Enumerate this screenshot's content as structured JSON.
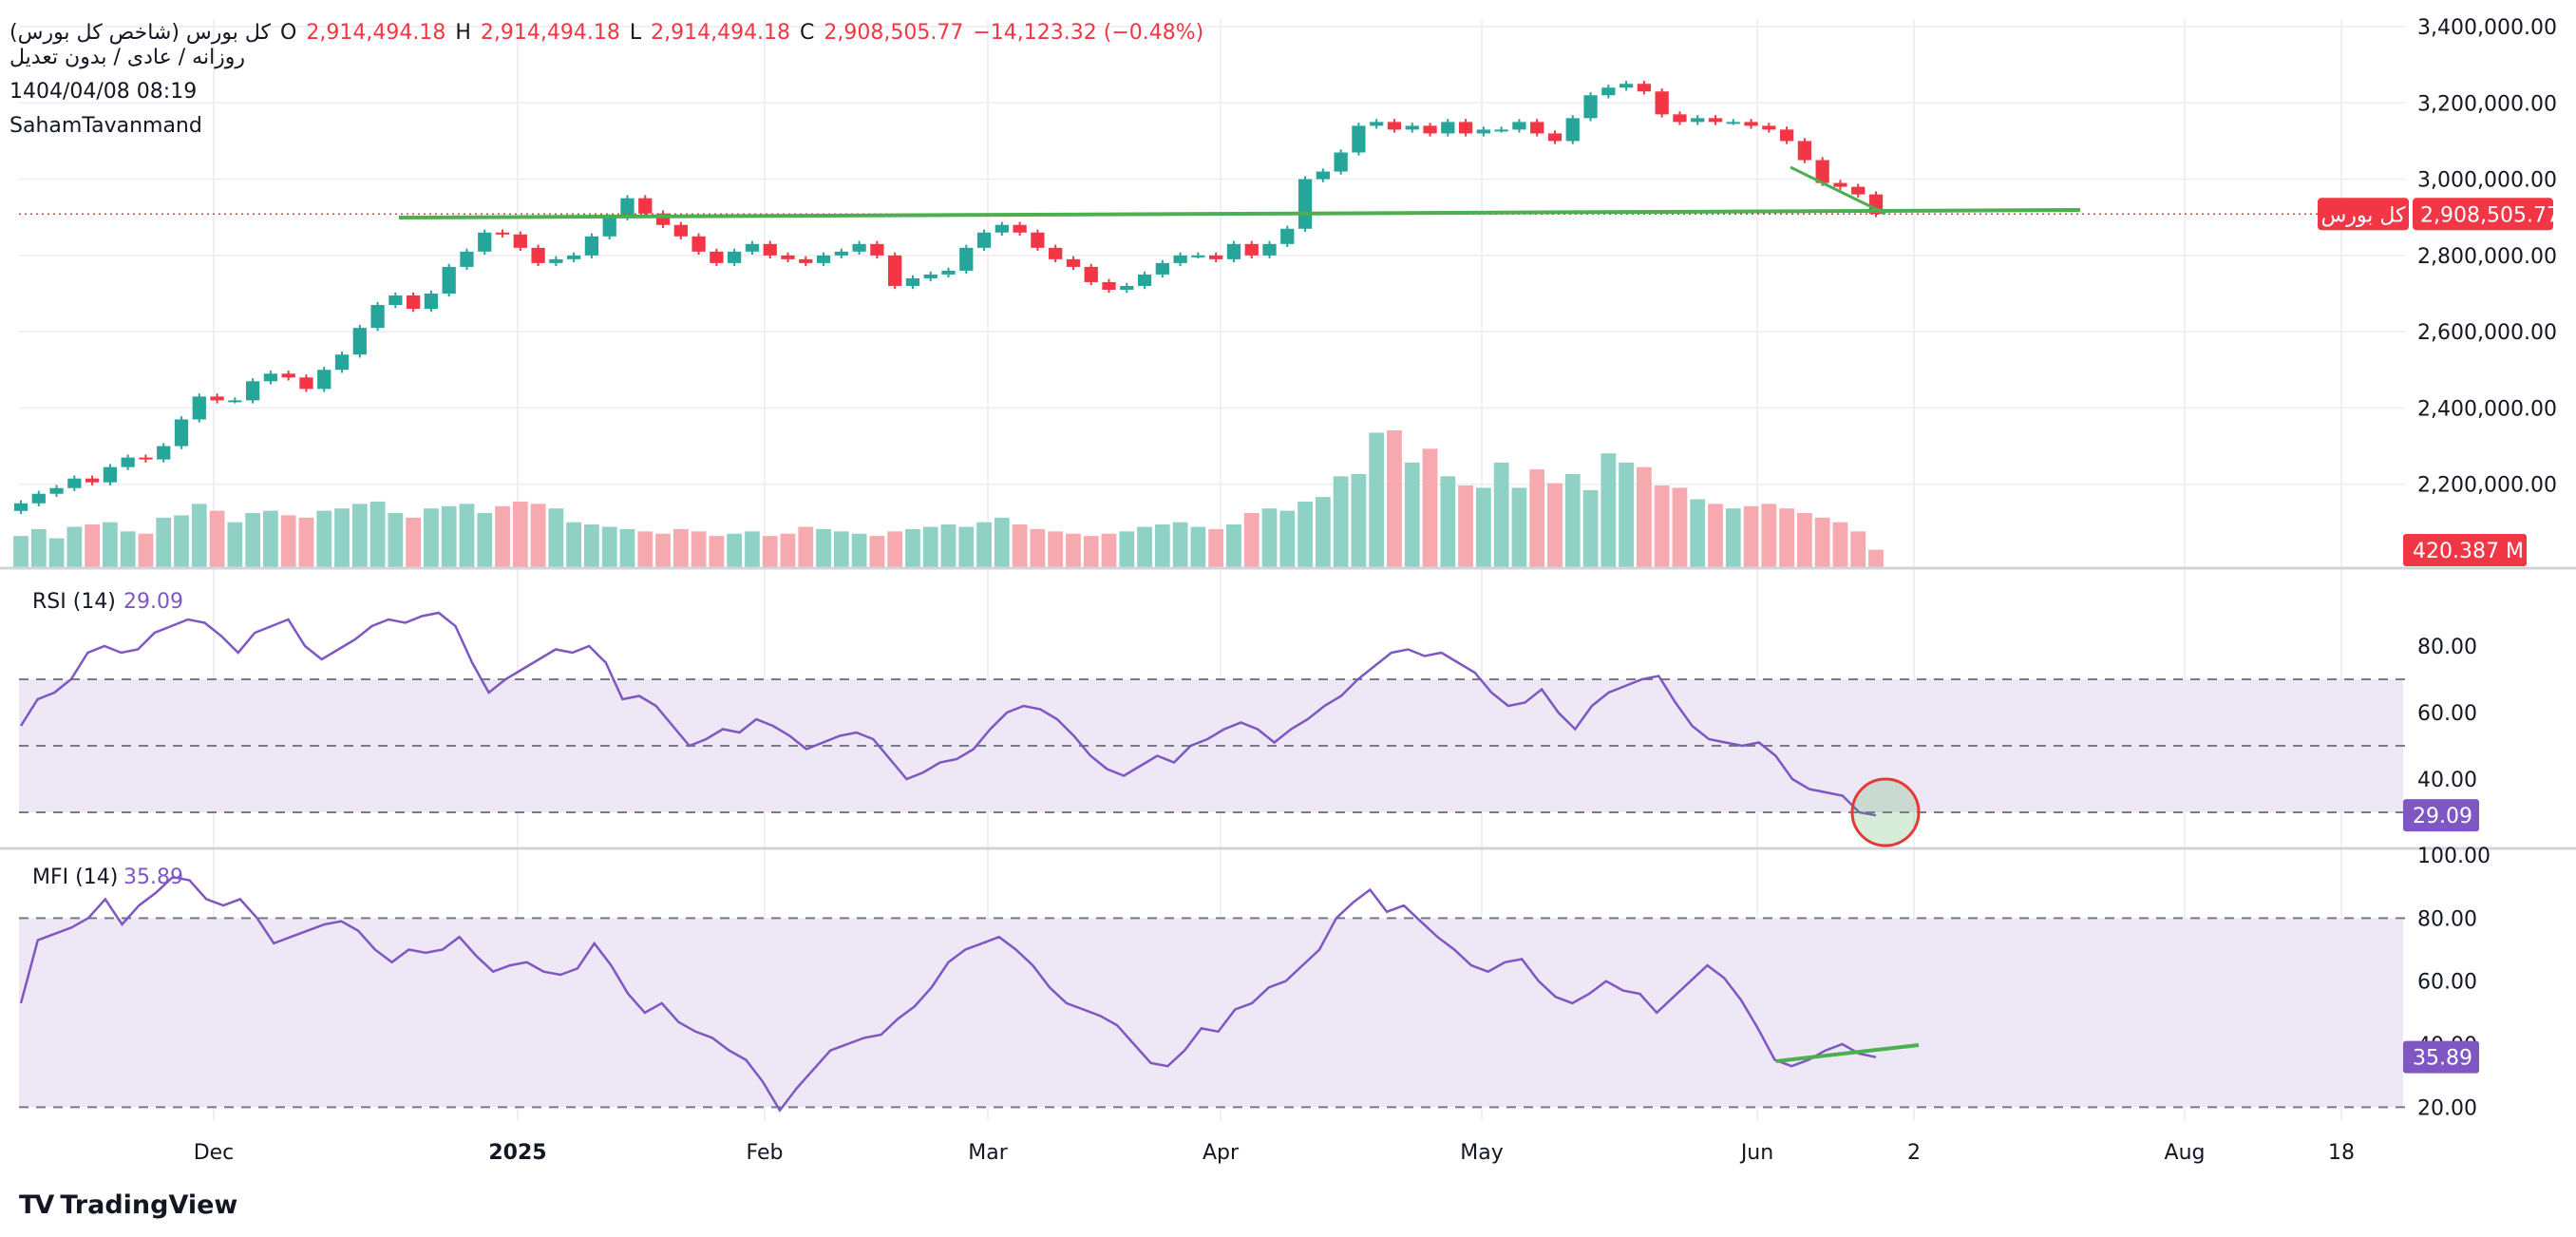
{
  "header": {
    "symbol_name": "کل بورس (شاخص کل بورس)",
    "open_label": "O",
    "open_value": "2,914,494.18",
    "high_label": "H",
    "high_value": "2,914,494.18",
    "low_label": "L",
    "low_value": "2,914,494.18",
    "close_label": "C",
    "close_value": "2,908,505.77",
    "change_value": "−14,123.32 (−0.48%)",
    "interval_line": "روزانه / عادی / بدون تعدیل",
    "timestamp": "1404/04/08 08:19",
    "author": "SahamTavanmand"
  },
  "colors": {
    "up": "#26a69a",
    "down": "#f23645",
    "volume_up": "#90d1c6",
    "volume_down": "#f7a9b0",
    "indicator": "#7e57c2",
    "band_fill": "#ede7f6",
    "trendline": "#4caf50",
    "grid": "#eef0f4"
  },
  "chart_data": [
    {
      "type": "candlestick",
      "title": "کل بورس (شاخص کل بورس)",
      "x_tick_labels": [
        "Dec",
        "2025",
        "Feb",
        "Mar",
        "Apr",
        "May",
        "Jun",
        "2",
        "Aug",
        "18"
      ],
      "y_tick_labels": [
        "2,200,000.00",
        "2,400,000.00",
        "2,600,000.00",
        "2,800,000.00",
        "3,000,000.00",
        "3,200,000.00",
        "3,400,000.00"
      ],
      "ylim": [
        1980000,
        3420000
      ],
      "last_price_label": "کل بورس",
      "last_price": "2,908,505.77",
      "close": [
        2150000,
        2175000,
        2190000,
        2215000,
        2205000,
        2245000,
        2270000,
        2265000,
        2300000,
        2370000,
        2430000,
        2420000,
        2420000,
        2470000,
        2490000,
        2480000,
        2450000,
        2500000,
        2540000,
        2610000,
        2670000,
        2695000,
        2660000,
        2700000,
        2770000,
        2810000,
        2860000,
        2855000,
        2820000,
        2780000,
        2790000,
        2800000,
        2850000,
        2900000,
        2950000,
        2910000,
        2880000,
        2850000,
        2810000,
        2780000,
        2810000,
        2830000,
        2800000,
        2790000,
        2780000,
        2800000,
        2810000,
        2830000,
        2800000,
        2720000,
        2740000,
        2750000,
        2760000,
        2820000,
        2860000,
        2880000,
        2860000,
        2820000,
        2790000,
        2770000,
        2730000,
        2710000,
        2720000,
        2750000,
        2780000,
        2800000,
        2800000,
        2790000,
        2830000,
        2800000,
        2830000,
        2870000,
        3000000,
        3020000,
        3070000,
        3140000,
        3150000,
        3130000,
        3140000,
        3120000,
        3150000,
        3120000,
        3130000,
        3130000,
        3150000,
        3120000,
        3100000,
        3160000,
        3220000,
        3240000,
        3250000,
        3230000,
        3170000,
        3150000,
        3160000,
        3150000,
        3150000,
        3140000,
        3130000,
        3100000,
        3050000,
        2990000,
        2980000,
        2960000,
        2908506
      ],
      "volume": [
        70,
        85,
        65,
        90,
        95,
        100,
        80,
        75,
        110,
        115,
        140,
        125,
        100,
        120,
        125,
        115,
        110,
        125,
        130,
        140,
        145,
        120,
        110,
        130,
        135,
        140,
        120,
        135,
        145,
        140,
        130,
        100,
        95,
        90,
        85,
        80,
        75,
        85,
        80,
        70,
        75,
        80,
        70,
        75,
        90,
        85,
        80,
        75,
        70,
        80,
        85,
        90,
        95,
        90,
        100,
        110,
        95,
        85,
        80,
        75,
        70,
        75,
        80,
        90,
        95,
        100,
        90,
        85,
        95,
        120,
        130,
        125,
        145,
        155,
        200,
        205,
        295,
        300,
        230,
        260,
        200,
        180,
        175,
        230,
        175,
        215,
        185,
        205,
        170,
        250,
        230,
        220,
        180,
        175,
        150,
        140,
        130,
        135,
        140,
        130,
        120,
        110,
        100,
        80,
        40
      ]
    },
    {
      "type": "line",
      "title": "RSI (14)",
      "value": "29.09",
      "y_tick_labels": [
        "40.00",
        "60.00",
        "80.00"
      ],
      "ylim": [
        20,
        100
      ],
      "band": [
        30,
        70
      ],
      "mid_line": 50,
      "values": [
        56,
        64,
        66,
        70,
        78,
        80,
        78,
        79,
        84,
        86,
        88,
        87,
        83,
        78,
        84,
        86,
        88,
        80,
        76,
        79,
        82,
        86,
        88,
        87,
        89,
        90,
        86,
        75,
        66,
        70,
        73,
        76,
        79,
        78,
        80,
        75,
        64,
        65,
        62,
        56,
        50,
        52,
        55,
        54,
        58,
        56,
        53,
        49,
        51,
        53,
        54,
        52,
        46,
        40,
        42,
        45,
        46,
        49,
        55,
        60,
        62,
        61,
        58,
        53,
        47,
        43,
        41,
        44,
        47,
        45,
        50,
        52,
        55,
        57,
        55,
        51,
        55,
        58,
        62,
        65,
        70,
        74,
        78,
        79,
        77,
        78,
        75,
        72,
        66,
        62,
        63,
        67,
        60,
        55,
        62,
        66,
        68,
        70,
        71,
        63,
        56,
        52,
        51,
        50,
        51,
        47,
        40,
        37,
        36,
        35,
        30,
        29.09
      ]
    },
    {
      "type": "line",
      "title": "MFI (14)",
      "value": "35.89",
      "y_tick_labels": [
        "20.00",
        "40.00",
        "60.00",
        "80.00",
        "100.00"
      ],
      "ylim": [
        18,
        100
      ],
      "band": [
        20,
        80
      ],
      "values": [
        53,
        73,
        75,
        77,
        80,
        86,
        78,
        84,
        88,
        93,
        92,
        86,
        84,
        86,
        80,
        72,
        74,
        76,
        78,
        79,
        76,
        70,
        66,
        70,
        69,
        70,
        74,
        68,
        63,
        65,
        66,
        63,
        62,
        64,
        72,
        65,
        56,
        50,
        53,
        47,
        44,
        42,
        38,
        35,
        28,
        19,
        26,
        32,
        38,
        40,
        42,
        43,
        48,
        52,
        58,
        66,
        70,
        72,
        74,
        70,
        65,
        58,
        53,
        51,
        49,
        46,
        40,
        34,
        33,
        38,
        45,
        44,
        51,
        53,
        58,
        60,
        65,
        70,
        80,
        85,
        89,
        82,
        84,
        79,
        74,
        70,
        65,
        63,
        66,
        67,
        60,
        55,
        53,
        56,
        60,
        57,
        56,
        50,
        55,
        60,
        65,
        61,
        54,
        45,
        35,
        33,
        35,
        38,
        40,
        37,
        35.89
      ]
    }
  ],
  "volume_label": "420.387 M",
  "brand": {
    "logo": "TV",
    "name": "TradingView"
  }
}
